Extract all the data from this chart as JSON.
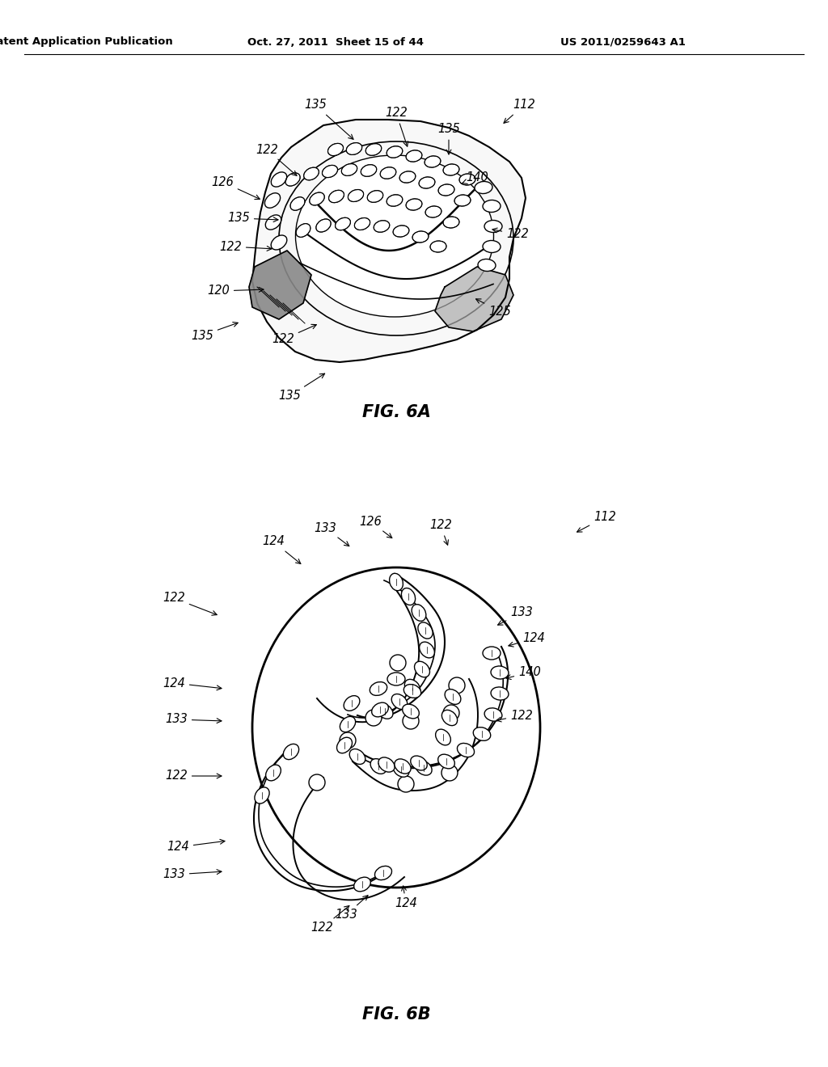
{
  "background_color": "#ffffff",
  "header_left": "Patent Application Publication",
  "header_center": "Oct. 27, 2011  Sheet 15 of 44",
  "header_right": "US 2011/0259643 A1",
  "fig6a_label": "FIG. 6A",
  "fig6b_label": "FIG. 6B",
  "text_color": "#000000",
  "line_color": "#000000",
  "header_fontsize": 9.5,
  "label_fontsize": 15,
  "annotation_fontsize": 10.5,
  "fig6a_annotations": [
    [
      "112",
      648,
      130,
      620,
      155
    ],
    [
      "135",
      390,
      130,
      440,
      175
    ],
    [
      "122",
      490,
      140,
      505,
      185
    ],
    [
      "135",
      555,
      160,
      555,
      195
    ],
    [
      "122",
      330,
      185,
      370,
      220
    ],
    [
      "126",
      275,
      225,
      325,
      248
    ],
    [
      "135",
      295,
      270,
      348,
      272
    ],
    [
      "122",
      285,
      305,
      340,
      308
    ],
    [
      "140",
      590,
      220,
      568,
      228
    ],
    [
      "122",
      640,
      290,
      605,
      283
    ],
    [
      "120",
      270,
      360,
      330,
      358
    ],
    [
      "122",
      350,
      420,
      395,
      400
    ],
    [
      "125",
      618,
      385,
      585,
      368
    ],
    [
      "135",
      250,
      415,
      298,
      398
    ],
    [
      "135",
      358,
      490,
      405,
      460
    ]
  ],
  "fig6b_annotations": [
    [
      "112",
      748,
      640,
      710,
      660
    ],
    [
      "124",
      338,
      670,
      375,
      700
    ],
    [
      "133",
      402,
      653,
      435,
      678
    ],
    [
      "126",
      458,
      645,
      488,
      668
    ],
    [
      "122",
      545,
      650,
      555,
      678
    ],
    [
      "122",
      215,
      740,
      272,
      762
    ],
    [
      "133",
      645,
      758,
      612,
      775
    ],
    [
      "124",
      660,
      790,
      625,
      800
    ],
    [
      "140",
      655,
      832,
      622,
      840
    ],
    [
      "124",
      215,
      845,
      278,
      852
    ],
    [
      "133",
      218,
      890,
      278,
      892
    ],
    [
      "122",
      645,
      885,
      610,
      892
    ],
    [
      "122",
      218,
      960,
      278,
      960
    ],
    [
      "124",
      220,
      1048,
      282,
      1040
    ],
    [
      "133",
      215,
      1082,
      278,
      1078
    ],
    [
      "122",
      398,
      1148,
      435,
      1118
    ],
    [
      "133",
      428,
      1132,
      458,
      1105
    ],
    [
      "124",
      502,
      1118,
      498,
      1092
    ]
  ]
}
